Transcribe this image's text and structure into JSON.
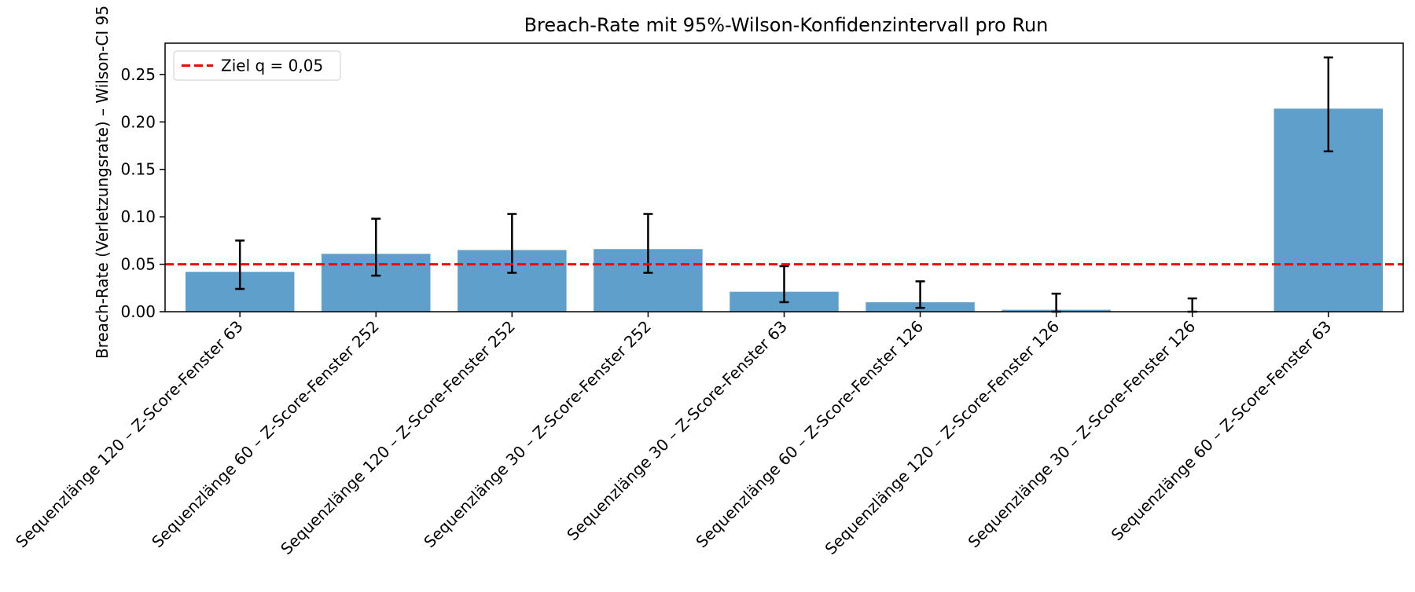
{
  "chart_data": {
    "type": "bar",
    "title": "Breach-Rate mit 95%-Wilson-Konfidenzintervall pro Run",
    "xlabel": "",
    "ylabel": "Breach-Rate (Verletzungsrate) – Wilson-CI 95",
    "ylim": [
      0,
      0.283
    ],
    "yticks": [
      0.0,
      0.05,
      0.1,
      0.15,
      0.2,
      0.25
    ],
    "ytick_labels": [
      "0.00",
      "0.05",
      "0.10",
      "0.15",
      "0.20",
      "0.25"
    ],
    "categories": [
      "Sequenzlänge 120 – Z-Score-Fenster 63",
      "Sequenzlänge 60 – Z-Score-Fenster 252",
      "Sequenzlänge 120 – Z-Score-Fenster 252",
      "Sequenzlänge 30 – Z-Score-Fenster 252",
      "Sequenzlänge 30 – Z-Score-Fenster 63",
      "Sequenzlänge 60 – Z-Score-Fenster 126",
      "Sequenzlänge 120 – Z-Score-Fenster 126",
      "Sequenzlänge 30 – Z-Score-Fenster 126",
      "Sequenzlänge 60 – Z-Score-Fenster 63"
    ],
    "values": [
      0.042,
      0.061,
      0.065,
      0.066,
      0.021,
      0.01,
      0.002,
      0.0,
      0.214
    ],
    "ci_lower": [
      0.024,
      0.038,
      0.041,
      0.041,
      0.01,
      0.004,
      0.0,
      0.0,
      0.169
    ],
    "ci_upper": [
      0.075,
      0.098,
      0.103,
      0.103,
      0.048,
      0.032,
      0.019,
      0.014,
      0.268
    ],
    "reference_line": {
      "value": 0.05,
      "label": "Ziel q = 0,05",
      "color": "#ff0000",
      "style": "dashed"
    },
    "bar_color": "#5f9fcb",
    "errorbar_color": "#000000",
    "legend_placement": "top-left",
    "grid": false
  }
}
